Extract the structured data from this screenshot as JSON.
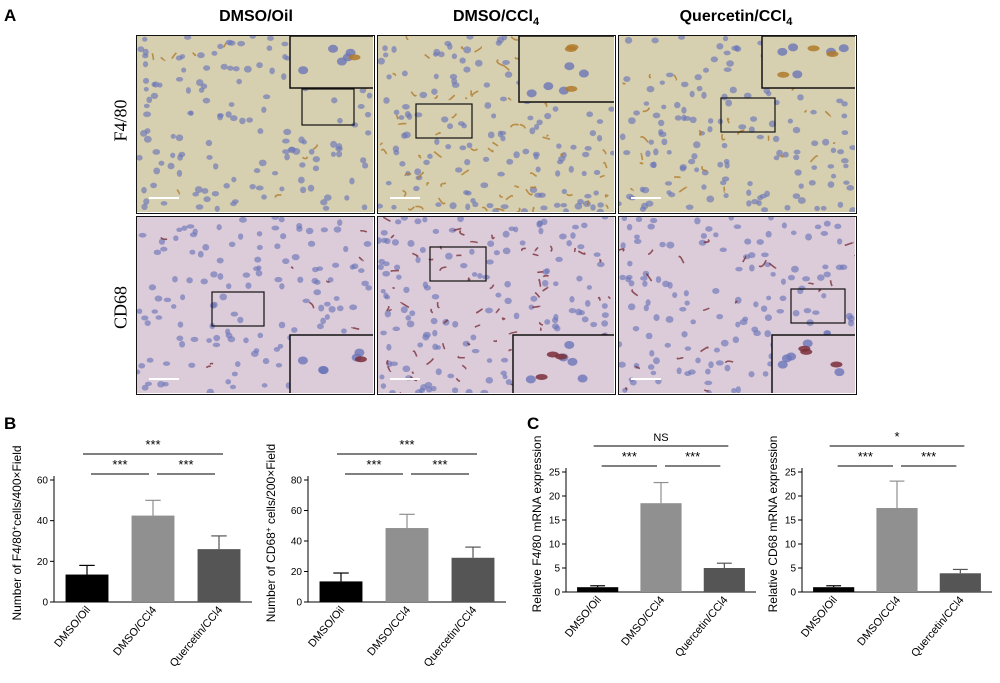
{
  "panels": {
    "a_label": "A",
    "b_label": "B",
    "c_label": "C"
  },
  "histology": {
    "columns": [
      "DMSO/Oil",
      "DMSO/CCl",
      "Quercetin/CCl"
    ],
    "column_subscripts": [
      "",
      "4",
      "4"
    ],
    "rows": [
      "F4/80",
      "CD68"
    ],
    "row_colors": {
      "F4/80": "#d6cfb0",
      "CD68": "#dccbd9"
    },
    "stain_colors": {
      "F4/80": "#b07a2a",
      "CD68": "#7a2f3a"
    },
    "nuclei_color": "#6c76b8"
  },
  "chart_data": [
    {
      "type": "bar",
      "panel": "B",
      "categories": [
        "DMSO/Oil",
        "DMSO/CCl4",
        "Quercetin/CCl4"
      ],
      "values": [
        13.5,
        42.5,
        26
      ],
      "errors": [
        4.5,
        7.5,
        6.5
      ],
      "colors": [
        "#000000",
        "#909090",
        "#555555"
      ],
      "ylabel_parts": [
        "Number of F4/80",
        "+",
        "cells/400×Field"
      ],
      "ylim": [
        0,
        60
      ],
      "yticks": [
        0,
        20,
        40,
        60
      ],
      "significance": [
        {
          "from": 0,
          "to": 2,
          "label": "***"
        },
        {
          "from": 0,
          "to": 1,
          "label": "***"
        },
        {
          "from": 1,
          "to": 2,
          "label": "***"
        }
      ]
    },
    {
      "type": "bar",
      "panel": "B",
      "categories": [
        "DMSO/Oil",
        "DMSO/CCl4",
        "Quercetin/CCl4"
      ],
      "values": [
        13.5,
        48.5,
        29
      ],
      "errors": [
        5.5,
        9,
        7
      ],
      "colors": [
        "#000000",
        "#909090",
        "#555555"
      ],
      "ylabel_parts": [
        "Number of CD68",
        "+",
        " cells/200×Field"
      ],
      "ylim": [
        0,
        80
      ],
      "yticks": [
        0,
        20,
        40,
        60,
        80
      ],
      "significance": [
        {
          "from": 0,
          "to": 2,
          "label": "***"
        },
        {
          "from": 0,
          "to": 1,
          "label": "***"
        },
        {
          "from": 1,
          "to": 2,
          "label": "***"
        }
      ]
    },
    {
      "type": "bar",
      "panel": "C",
      "categories": [
        "DMSO/Oil",
        "DMSO/CCl4",
        "Quercetin/CCl4"
      ],
      "values": [
        1,
        18.5,
        5
      ],
      "errors": [
        0.3,
        4.3,
        1
      ],
      "colors": [
        "#000000",
        "#909090",
        "#555555"
      ],
      "ylabel_parts": [
        "Relative F4/80 mRNA expression"
      ],
      "ylim": [
        0,
        25
      ],
      "yticks": [
        0,
        5,
        10,
        15,
        20,
        25
      ],
      "significance": [
        {
          "from": 0,
          "to": 2,
          "label": "NS"
        },
        {
          "from": 0,
          "to": 1,
          "label": "***"
        },
        {
          "from": 1,
          "to": 2,
          "label": "***"
        }
      ]
    },
    {
      "type": "bar",
      "panel": "C",
      "categories": [
        "DMSO/Oil",
        "DMSO/CCl4",
        "Quercetin/CCl4"
      ],
      "values": [
        1,
        17.5,
        3.9
      ],
      "errors": [
        0.3,
        5.6,
        0.8
      ],
      "colors": [
        "#000000",
        "#909090",
        "#555555"
      ],
      "ylabel_parts": [
        "Relative CD68 mRNA expression"
      ],
      "ylim": [
        0,
        25
      ],
      "yticks": [
        0,
        5,
        10,
        15,
        20,
        25
      ],
      "significance": [
        {
          "from": 0,
          "to": 2,
          "label": "*"
        },
        {
          "from": 0,
          "to": 1,
          "label": "***"
        },
        {
          "from": 1,
          "to": 2,
          "label": "***"
        }
      ]
    }
  ]
}
